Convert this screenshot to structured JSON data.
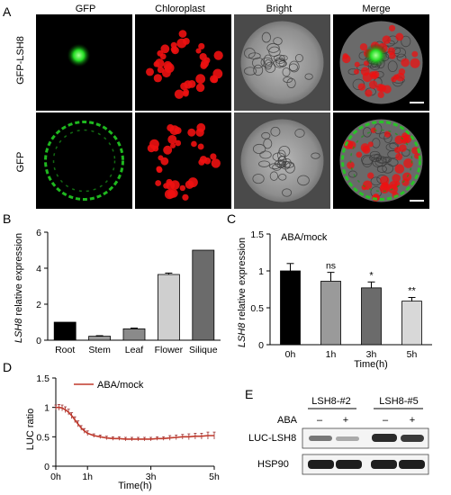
{
  "panel_letters": [
    "A",
    "B",
    "C",
    "D",
    "E"
  ],
  "panelA": {
    "column_headers": [
      "GFP",
      "Chloroplast",
      "Bright",
      "Merge"
    ],
    "row_labels": [
      "GFP-LSH8",
      "GFP"
    ]
  },
  "chart_data": [
    {
      "type": "bar",
      "categories": [
        "Root",
        "Stem",
        "Leaf",
        "Flower",
        "Silique"
      ],
      "values": [
        1.0,
        0.22,
        0.63,
        3.65,
        5.0
      ],
      "errors": [
        0.0,
        0.03,
        0.04,
        0.08,
        0.0
      ],
      "colors": [
        "#000000",
        "#9a9a9a",
        "#8a8a8a",
        "#cfcfcf",
        "#6b6b6b"
      ],
      "title": "",
      "ylabel_gene": "LSH8",
      "ylabel_rest": " relative expression",
      "ylim": [
        0,
        6
      ],
      "yticks": [
        0,
        2,
        4,
        6
      ]
    },
    {
      "type": "bar",
      "title": "ABA/mock",
      "categories": [
        "0h",
        "1h",
        "3h",
        "5h"
      ],
      "values": [
        1.0,
        0.86,
        0.77,
        0.59
      ],
      "errors": [
        0.1,
        0.12,
        0.08,
        0.05
      ],
      "significance": [
        "",
        "ns",
        "*",
        "**"
      ],
      "colors": [
        "#000000",
        "#9a9a9a",
        "#6b6b6b",
        "#d8d8d8"
      ],
      "xlabel": "Time(h)",
      "ylabel_gene": "LSH8",
      "ylabel_rest": " relative expression",
      "ylim": [
        0,
        1.5
      ],
      "yticks": [
        "0",
        "0.5",
        "1",
        "1.5"
      ]
    },
    {
      "type": "line",
      "legend": "ABA/mock",
      "series_color": "#c0392b",
      "xlabel": "Time(h)",
      "ylabel": "LUC ratio",
      "xticks": [
        "0h",
        "1h",
        "3h",
        "5h"
      ],
      "xlim": [
        0,
        5
      ],
      "ylim": [
        0,
        1.5
      ],
      "yticks": [
        "0",
        "0.5",
        "1",
        "1.5"
      ],
      "x": [
        0,
        0.1,
        0.2,
        0.3,
        0.4,
        0.5,
        0.6,
        0.7,
        0.8,
        0.9,
        1.0,
        1.2,
        1.4,
        1.6,
        1.8,
        2.0,
        2.2,
        2.4,
        2.6,
        2.8,
        3.0,
        3.2,
        3.4,
        3.6,
        3.8,
        4.0,
        4.2,
        4.4,
        4.6,
        4.8,
        5.0
      ],
      "y": [
        1.0,
        1.0,
        0.99,
        0.96,
        0.92,
        0.86,
        0.79,
        0.72,
        0.65,
        0.6,
        0.56,
        0.52,
        0.5,
        0.48,
        0.47,
        0.47,
        0.46,
        0.46,
        0.46,
        0.46,
        0.46,
        0.47,
        0.47,
        0.48,
        0.49,
        0.5,
        0.5,
        0.51,
        0.51,
        0.52,
        0.52
      ],
      "err": [
        0.04,
        0.05,
        0.05,
        0.05,
        0.05,
        0.05,
        0.05,
        0.05,
        0.04,
        0.04,
        0.04,
        0.03,
        0.03,
        0.03,
        0.03,
        0.03,
        0.03,
        0.03,
        0.03,
        0.03,
        0.03,
        0.03,
        0.03,
        0.04,
        0.04,
        0.04,
        0.05,
        0.05,
        0.05,
        0.06,
        0.06
      ]
    }
  ],
  "panelE": {
    "lines": [
      "LSH8-#2",
      "LSH8-#5"
    ],
    "treatment_label": "ABA",
    "treatment_signs": [
      "–",
      "+",
      "–",
      "+"
    ],
    "blot_labels": [
      "LUC-LSH8",
      "HSP90"
    ]
  }
}
